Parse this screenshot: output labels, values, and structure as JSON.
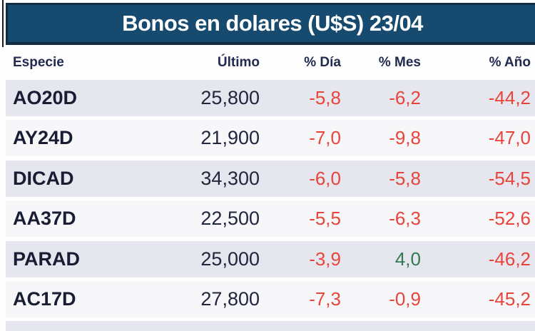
{
  "header": {
    "title": "Bonos en dolares (U$S) 23/04"
  },
  "table": {
    "columns": [
      "Especie",
      "Último",
      "% Día",
      "% Mes",
      "% Año"
    ],
    "rows": [
      [
        "AO20D",
        "25,800",
        "-5,8",
        "-6,2",
        "-44,2"
      ],
      [
        "AY24D",
        "21,900",
        "-7,0",
        "-9,8",
        "-47,0"
      ],
      [
        "DICAD",
        "34,300",
        "-6,0",
        "-5,8",
        "-54,5"
      ],
      [
        "AA37D",
        "22,500",
        "-5,5",
        "-6,3",
        "-52,6"
      ],
      [
        "PARAD",
        "25,000",
        "-3,9",
        "4,0",
        "-46,2"
      ],
      [
        "AC17D",
        "27,800",
        "-7,3",
        "-0,9",
        "-45,2"
      ]
    ]
  },
  "chart_data": {
    "type": "table",
    "title": "Bonos en dolares (U$S) 23/04",
    "date": "23/04",
    "columns": [
      "Especie",
      "Último",
      "% Día",
      "% Mes",
      "% Año"
    ],
    "rows": [
      {
        "especie": "AO20D",
        "ultimo": 25.8,
        "pct_dia": -5.8,
        "pct_mes": -6.2,
        "pct_ano": -44.2
      },
      {
        "especie": "AY24D",
        "ultimo": 21.9,
        "pct_dia": -7.0,
        "pct_mes": -9.8,
        "pct_ano": -47.0
      },
      {
        "especie": "DICAD",
        "ultimo": 34.3,
        "pct_dia": -6.0,
        "pct_mes": -5.8,
        "pct_ano": -54.5
      },
      {
        "especie": "AA37D",
        "ultimo": 22.5,
        "pct_dia": -5.5,
        "pct_mes": -6.3,
        "pct_ano": -52.6
      },
      {
        "especie": "PARAD",
        "ultimo": 25.0,
        "pct_dia": -3.9,
        "pct_mes": 4.0,
        "pct_ano": -46.2
      },
      {
        "especie": "AC17D",
        "ultimo": 27.8,
        "pct_dia": -7.3,
        "pct_mes": -0.9,
        "pct_ano": -45.2
      }
    ],
    "layout": {
      "negative_color_meaning": "loss",
      "positive_color_meaning": "gain",
      "decimal_separator": "comma"
    }
  },
  "colors": {
    "header_bg": "#164a6e",
    "header_border": "#122b44",
    "title_color": "#ffffff",
    "colhead_text": "#222a50",
    "especie_text": "#191d33",
    "number_text": "#20263c",
    "neg": "#e9443a",
    "pos": "#2f7b4f",
    "stripe": "#e6e6ef",
    "row_light": "#f7f7fa"
  }
}
